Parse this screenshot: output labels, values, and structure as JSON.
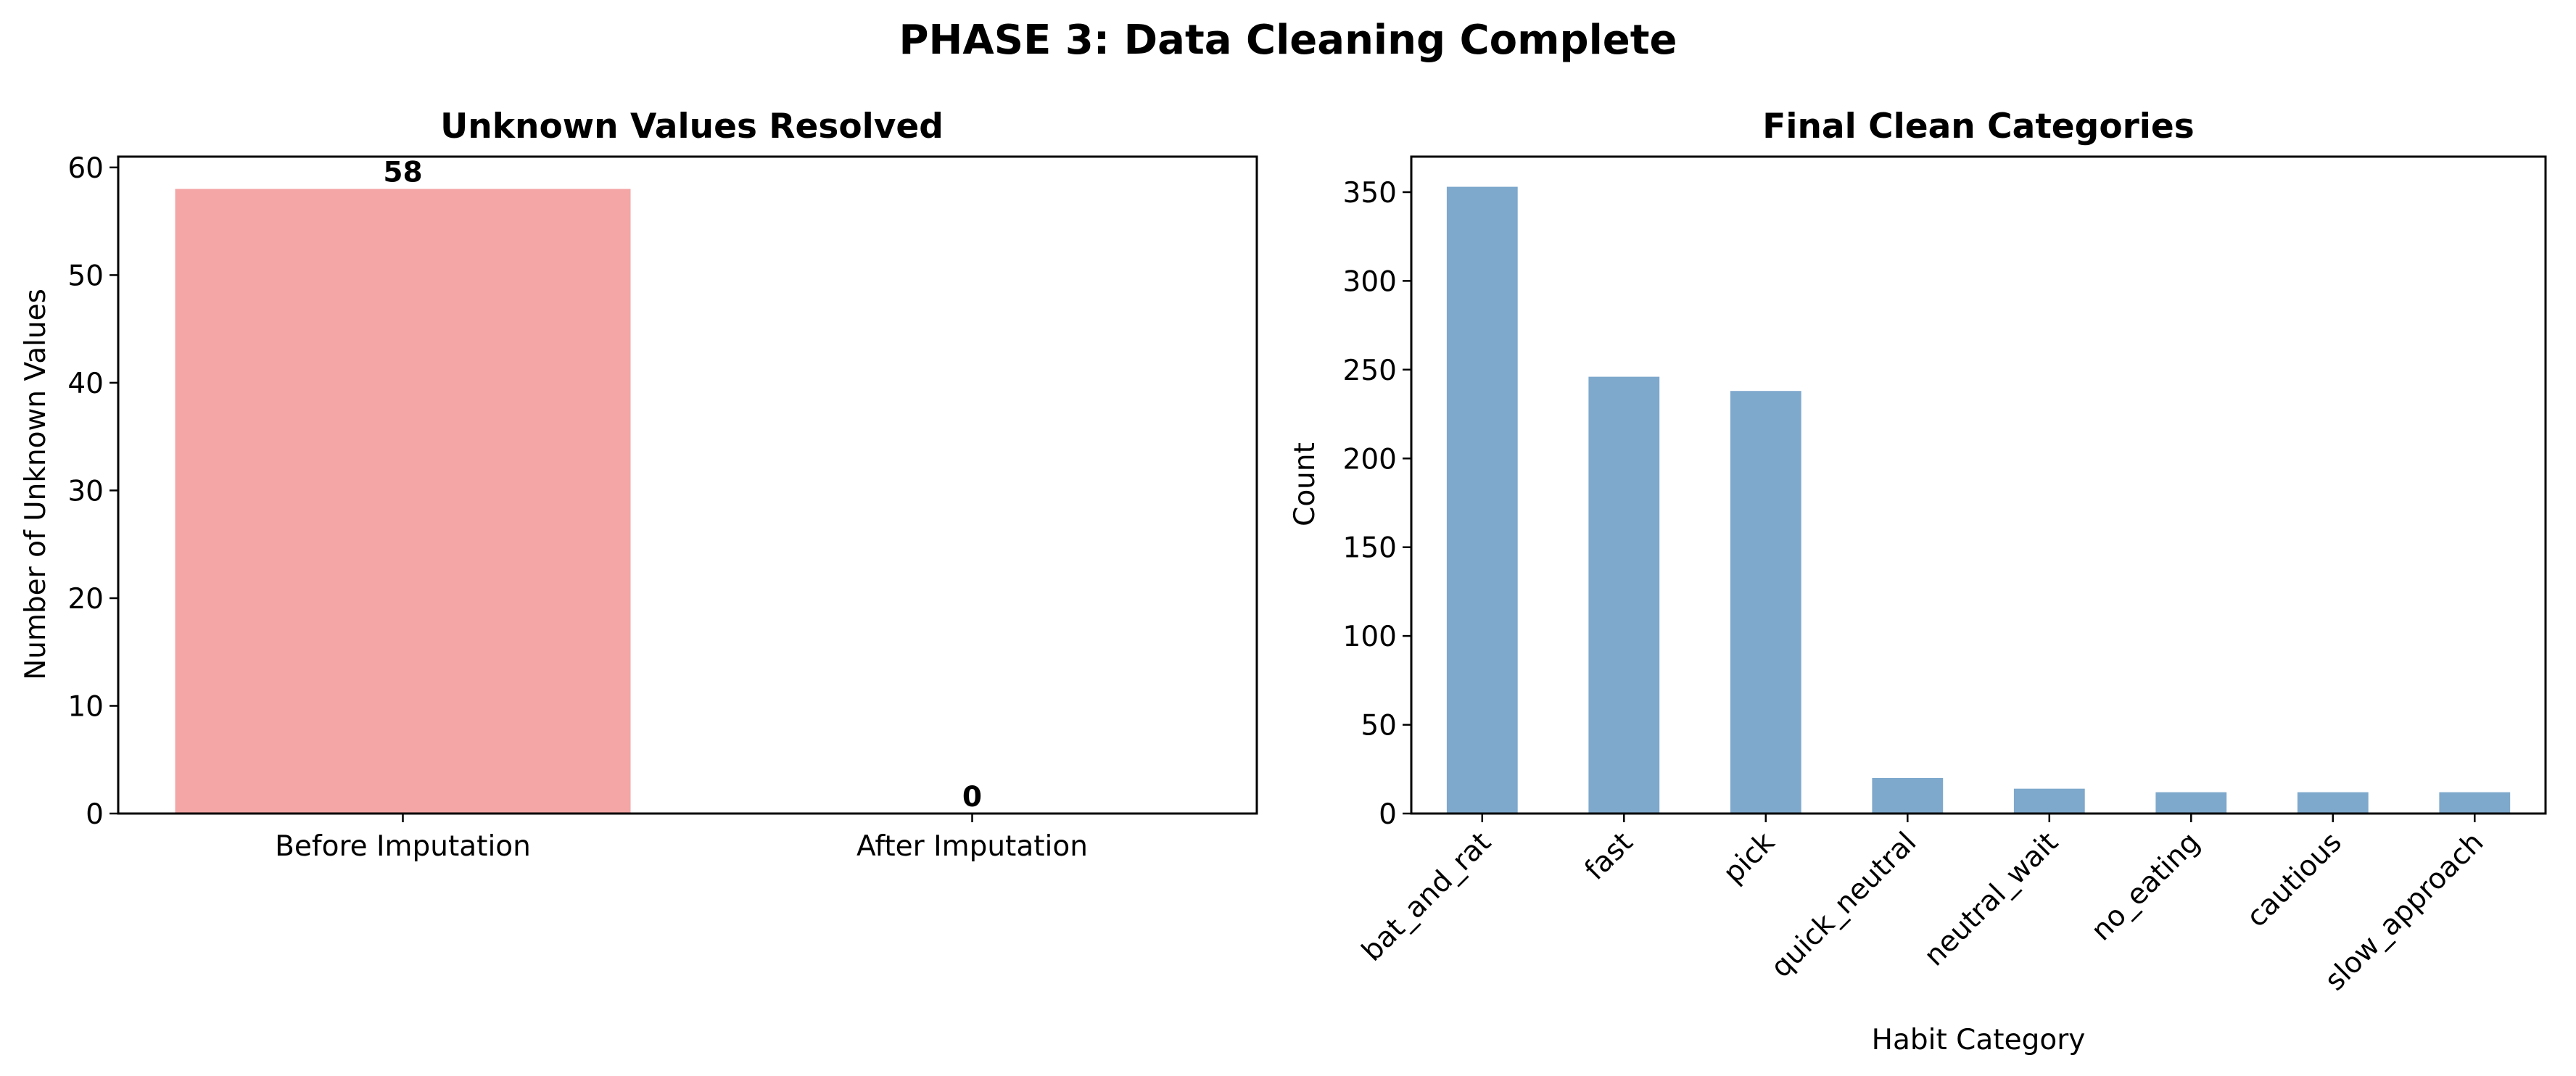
{
  "figure": {
    "suptitle": "PHASE 3: Data Cleaning Complete"
  },
  "chart_data": [
    {
      "type": "bar",
      "title": "Unknown Values Resolved",
      "xlabel": "",
      "ylabel": "Number of Unknown Values",
      "categories": [
        "Before Imputation",
        "After Imputation"
      ],
      "values": [
        58,
        0
      ],
      "data_labels": [
        "58",
        "0"
      ],
      "colors": [
        "#f4a6a6",
        "#90ee90"
      ],
      "ylim": [
        0,
        61
      ],
      "yticks": [
        0,
        10,
        20,
        30,
        40,
        50,
        60
      ],
      "grid": false,
      "legend": "none"
    },
    {
      "type": "bar",
      "title": "Final Clean Categories",
      "xlabel": "Habit Category",
      "ylabel": "Count",
      "categories": [
        "bat_and_rat",
        "fast",
        "pick",
        "quick_neutral",
        "neutral_wait",
        "no_eating",
        "cautious",
        "slow_approach"
      ],
      "values": [
        353,
        246,
        238,
        20,
        14,
        12,
        12,
        12
      ],
      "color": "#7ea8cc",
      "ylim": [
        0,
        370
      ],
      "yticks": [
        0,
        50,
        100,
        150,
        200,
        250,
        300,
        350
      ],
      "grid": false,
      "legend": "none"
    }
  ]
}
